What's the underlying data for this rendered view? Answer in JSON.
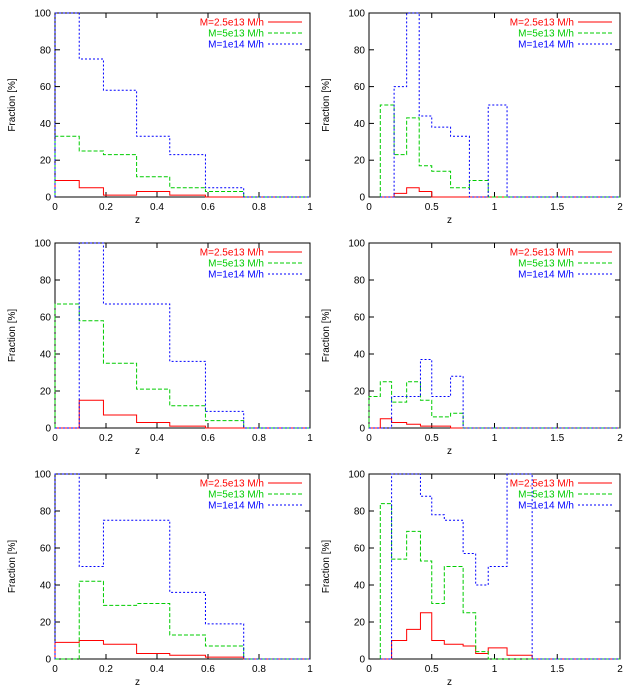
{
  "figure": {
    "legend_labels": [
      "M=2.5e13 M/h",
      "M=5e13 M/h",
      "M=1e14 M/h"
    ],
    "series_colors": [
      "#ff0000",
      "#00cc00",
      "#0000ff"
    ],
    "line_styles": [
      "solid",
      "dashed",
      "dotted"
    ],
    "legend_position": "top-right",
    "grid": false
  },
  "chart_data": [
    {
      "type": "line",
      "step": true,
      "ylabel": "Fraction [%]",
      "xlabel": "z",
      "xlim": [
        0,
        1
      ],
      "ylim": [
        0,
        100
      ],
      "xticks": [
        0,
        0.2,
        0.4,
        0.6,
        0.8,
        1
      ],
      "xtick_labels": [
        "0",
        "0.2",
        "0.4",
        "0.6",
        "0.8",
        "1"
      ],
      "yticks": [
        0,
        20,
        40,
        60,
        80,
        100
      ],
      "bin_edges": [
        0,
        0.095,
        0.19,
        0.32,
        0.45,
        0.59,
        0.74,
        1.0
      ],
      "series": [
        {
          "name": "M=2.5e13 M/h",
          "values": [
            9,
            5,
            1,
            3,
            1,
            0,
            0
          ]
        },
        {
          "name": "M=5e13 M/h",
          "values": [
            33,
            25,
            23,
            11,
            5,
            3,
            0
          ]
        },
        {
          "name": "M=1e14 M/h",
          "values": [
            100,
            75,
            58,
            33,
            23,
            5,
            0
          ]
        }
      ]
    },
    {
      "type": "line",
      "step": true,
      "ylabel": "Fraction [%]",
      "xlabel": "z",
      "xlim": [
        0,
        2
      ],
      "ylim": [
        0,
        100
      ],
      "xticks": [
        0,
        0.5,
        1,
        1.5,
        2
      ],
      "xtick_labels": [
        "0",
        "0.5",
        "1",
        "1.5",
        "2"
      ],
      "yticks": [
        0,
        20,
        40,
        60,
        80,
        100
      ],
      "bin_edges": [
        0.09,
        0.2,
        0.3,
        0.4,
        0.5,
        0.65,
        0.8,
        0.95,
        1.1,
        1.3
      ],
      "series": [
        {
          "name": "M=2.5e13 M/h",
          "values": [
            0,
            2,
            5,
            3,
            0,
            0,
            0,
            0,
            0
          ]
        },
        {
          "name": "M=5e13 M/h",
          "values": [
            50,
            23,
            43,
            17,
            14,
            5,
            9,
            0,
            0
          ]
        },
        {
          "name": "M=1e14 M/h",
          "values": [
            0,
            60,
            100,
            44,
            38,
            33,
            0,
            50,
            0
          ]
        }
      ]
    },
    {
      "type": "line",
      "step": true,
      "ylabel": "Fraction [%]",
      "xlabel": "z",
      "xlim": [
        0,
        1
      ],
      "ylim": [
        0,
        100
      ],
      "xticks": [
        0,
        0.2,
        0.4,
        0.6,
        0.8,
        1
      ],
      "xtick_labels": [
        "0",
        "0.2",
        "0.4",
        "0.6",
        "0.8",
        "1"
      ],
      "yticks": [
        0,
        20,
        40,
        60,
        80,
        100
      ],
      "bin_edges": [
        0,
        0.095,
        0.19,
        0.32,
        0.45,
        0.59,
        0.74,
        1.0
      ],
      "series": [
        {
          "name": "M=2.5e13 M/h",
          "values": [
            0,
            15,
            7,
            3,
            1,
            0,
            0
          ]
        },
        {
          "name": "M=5e13 M/h",
          "values": [
            67,
            58,
            35,
            21,
            12,
            4,
            0
          ]
        },
        {
          "name": "M=1e14 M/h",
          "values": [
            0,
            100,
            67,
            67,
            36,
            9,
            0
          ]
        }
      ]
    },
    {
      "type": "line",
      "step": true,
      "ylabel": "Fraction [%]",
      "xlabel": "z",
      "xlim": [
        0,
        2
      ],
      "ylim": [
        0,
        100
      ],
      "xticks": [
        0,
        0.5,
        1,
        1.5,
        2
      ],
      "xtick_labels": [
        "0",
        "0.5",
        "1",
        "1.5",
        "2"
      ],
      "yticks": [
        0,
        20,
        40,
        60,
        80,
        100
      ],
      "bin_edges": [
        0,
        0.09,
        0.18,
        0.3,
        0.41,
        0.5,
        0.65,
        0.75,
        0.92
      ],
      "series": [
        {
          "name": "M=2.5e13 M/h",
          "values": [
            0,
            5,
            3,
            2,
            1,
            1,
            0,
            0
          ]
        },
        {
          "name": "M=5e13 M/h",
          "values": [
            17,
            25,
            14,
            25,
            15,
            6,
            8,
            0
          ]
        },
        {
          "name": "M=1e14 M/h",
          "values": [
            0,
            0,
            17,
            17,
            37,
            17,
            28,
            0
          ]
        }
      ]
    },
    {
      "type": "line",
      "step": true,
      "ylabel": "Fraction [%]",
      "xlabel": "z",
      "xlim": [
        0,
        1
      ],
      "ylim": [
        0,
        100
      ],
      "xticks": [
        0,
        0.2,
        0.4,
        0.6,
        0.8,
        1
      ],
      "xtick_labels": [
        "0",
        "0.2",
        "0.4",
        "0.6",
        "0.8",
        "1"
      ],
      "yticks": [
        0,
        20,
        40,
        60,
        80,
        100
      ],
      "bin_edges": [
        0,
        0.095,
        0.19,
        0.32,
        0.45,
        0.59,
        0.74,
        1.0
      ],
      "series": [
        {
          "name": "M=2.5e13 M/h",
          "values": [
            9,
            10,
            8,
            3,
            2,
            1,
            0
          ]
        },
        {
          "name": "M=5e13 M/h",
          "values": [
            0,
            42,
            29,
            30,
            13,
            7,
            0
          ]
        },
        {
          "name": "M=1e14 M/h",
          "values": [
            100,
            50,
            75,
            75,
            36,
            19,
            0
          ]
        }
      ]
    },
    {
      "type": "line",
      "step": true,
      "ylabel": "Fraction [%]",
      "xlabel": "z",
      "xlim": [
        0,
        2
      ],
      "ylim": [
        0,
        100
      ],
      "xticks": [
        0,
        0.5,
        1,
        1.5,
        2
      ],
      "xtick_labels": [
        "0",
        "0.5",
        "1",
        "1.5",
        "2"
      ],
      "yticks": [
        0,
        20,
        40,
        60,
        80,
        100
      ],
      "bin_edges": [
        0.09,
        0.18,
        0.3,
        0.41,
        0.5,
        0.6,
        0.75,
        0.85,
        0.95,
        1.1,
        1.3,
        1.5
      ],
      "series": [
        {
          "name": "M=2.5e13 M/h",
          "values": [
            0,
            10,
            16,
            25,
            10,
            8,
            7,
            3,
            6,
            2,
            0
          ]
        },
        {
          "name": "M=5e13 M/h",
          "values": [
            84,
            54,
            69,
            53,
            30,
            50,
            25,
            4,
            0,
            0,
            0
          ]
        },
        {
          "name": "M=1e14 M/h",
          "values": [
            0,
            100,
            100,
            88,
            78,
            75,
            57,
            40,
            50,
            100,
            0
          ]
        }
      ]
    }
  ]
}
